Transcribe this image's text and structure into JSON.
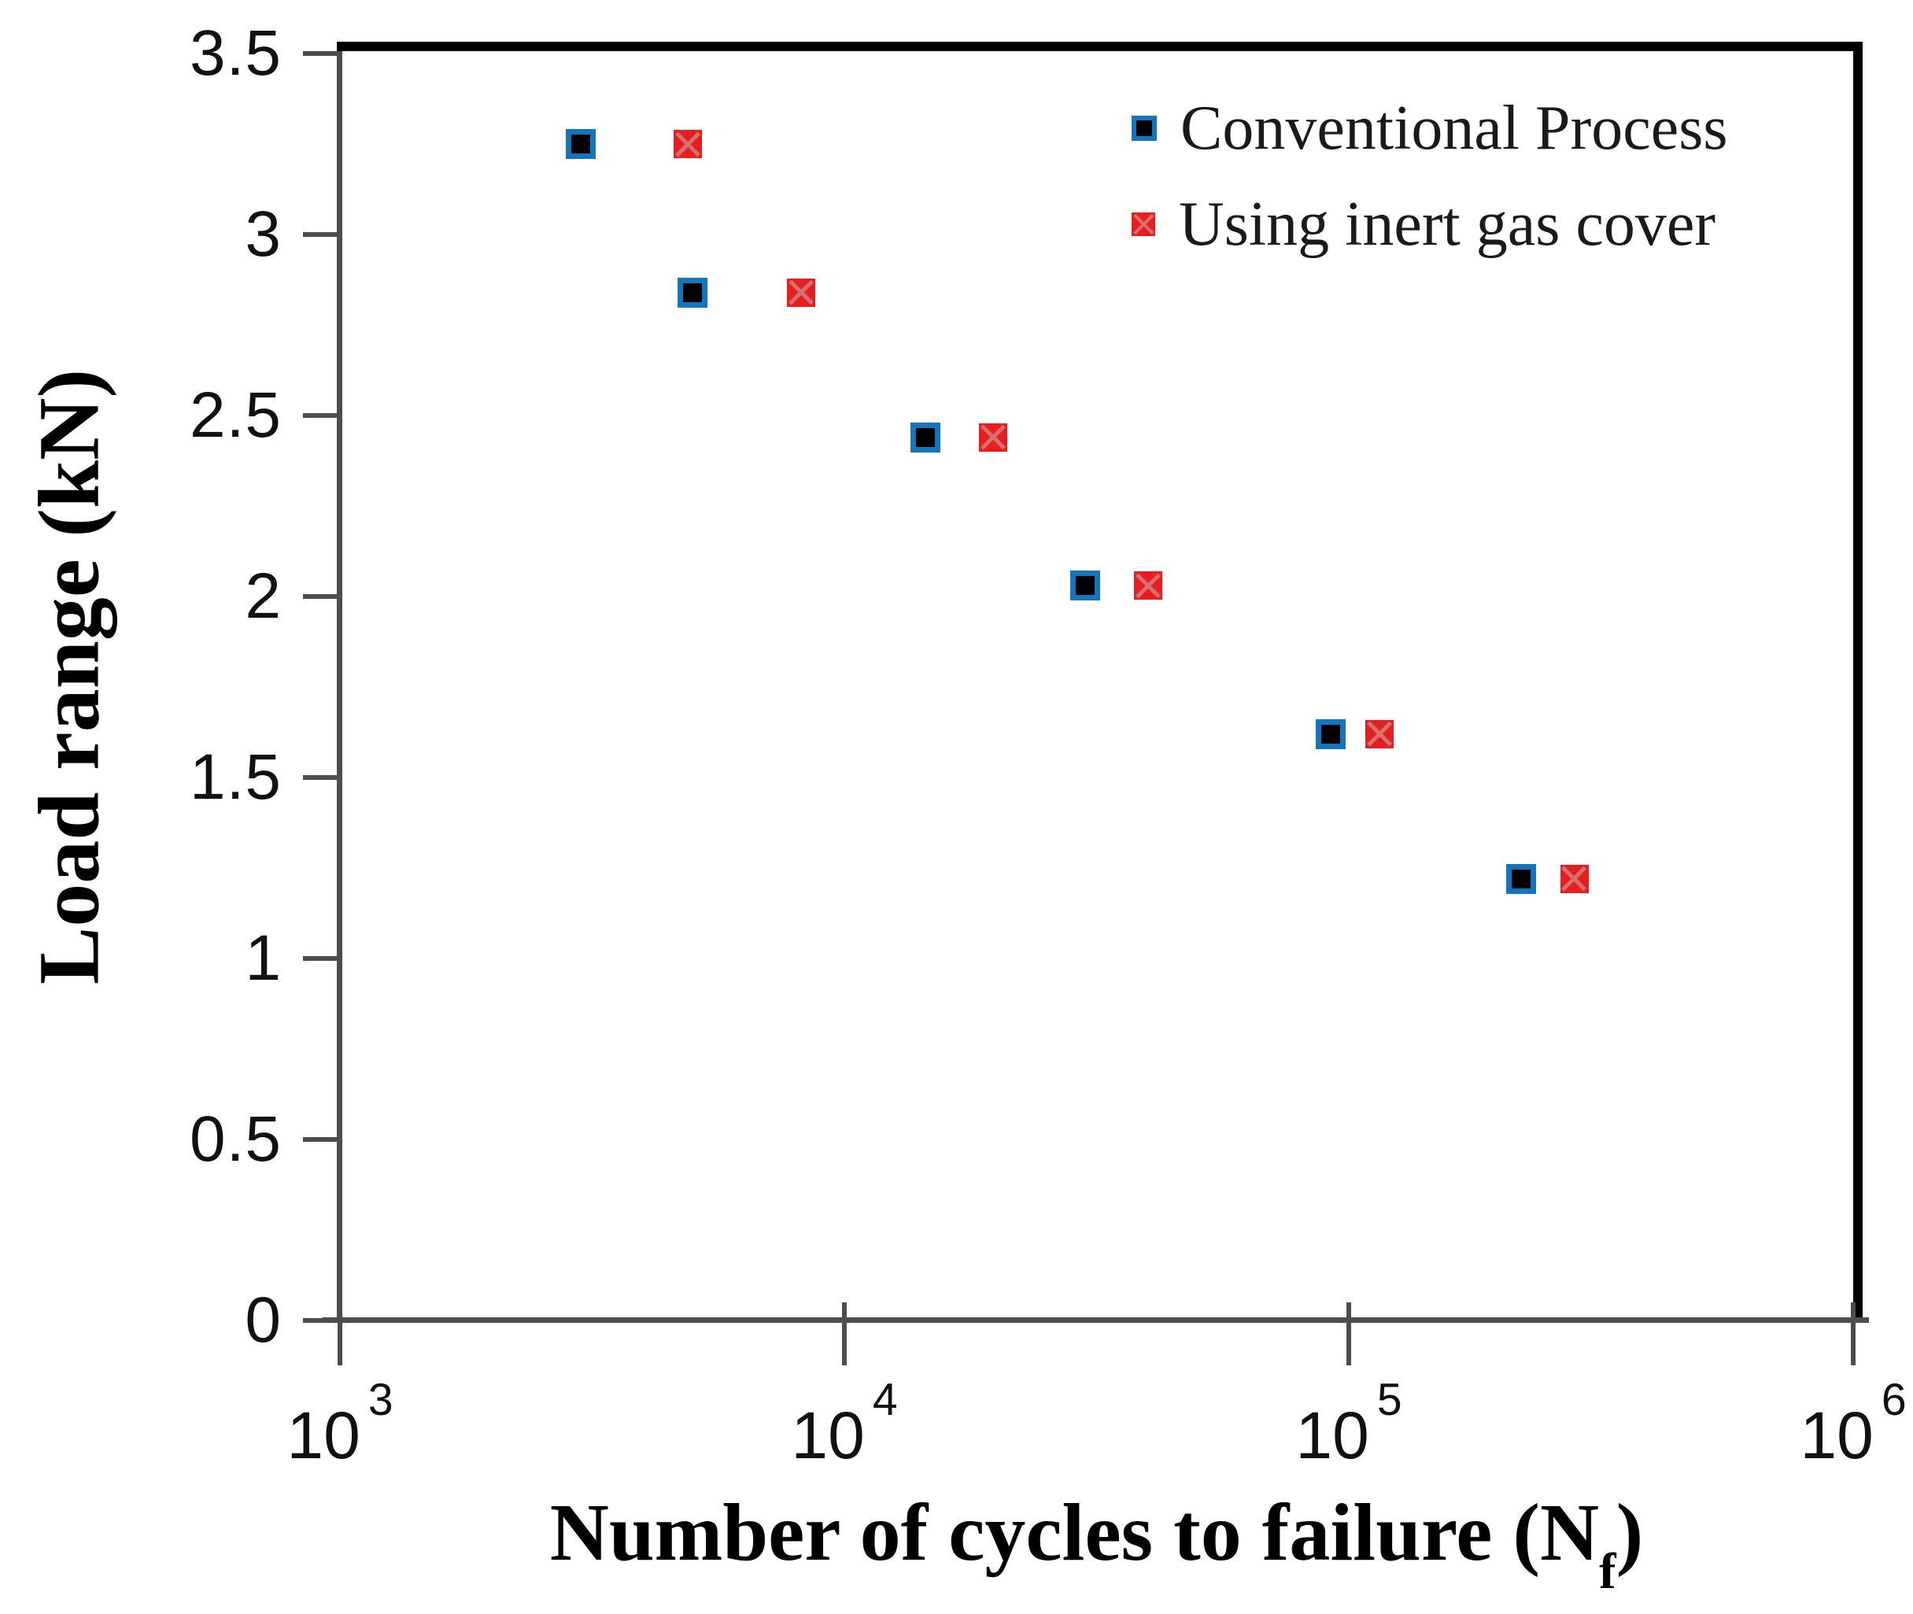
{
  "figure": {
    "background": "#ffffff"
  },
  "axis_titles": {
    "ylabel": "Load range (kN)",
    "xlabel_main": "Number of cycles to failure (N",
    "xlabel_sub": "f",
    "xlabel_close": ")"
  },
  "chart_data": {
    "type": "scatter",
    "x_scale": "log",
    "xlim": [
      1000,
      1000000
    ],
    "ylim": [
      0,
      3.5
    ],
    "grid": false,
    "legend_position": "top-right-inside",
    "xlabel": "Number of cycles to failure (Nf)",
    "ylabel": "Load range (kN)",
    "x_tick_base": "10",
    "x_ticks_exponents": [
      "3",
      "4",
      "5",
      "6"
    ],
    "y_ticks": [
      3.5,
      3,
      2.5,
      2,
      1.5,
      1,
      0.5,
      0
    ],
    "y_tick_labels": [
      "3.5",
      "3",
      "2.5",
      "2",
      "1.5",
      "1",
      "0.5",
      "0"
    ],
    "series": [
      {
        "name": "Conventional Process",
        "marker": {
          "shape": "square",
          "fill": "#000000",
          "border": "#1375bd"
        },
        "points": [
          {
            "x": 3000,
            "y": 3.25
          },
          {
            "x": 5000,
            "y": 2.84
          },
          {
            "x": 14500,
            "y": 2.44
          },
          {
            "x": 30000,
            "y": 2.03
          },
          {
            "x": 92000,
            "y": 1.62
          },
          {
            "x": 220000,
            "y": 1.22
          }
        ]
      },
      {
        "name": "Using inert gas cover",
        "marker": {
          "shape": "square-x",
          "fill": "#e81e1e",
          "cross": "#d47070"
        },
        "points": [
          {
            "x": 4900,
            "y": 3.25
          },
          {
            "x": 8200,
            "y": 2.84
          },
          {
            "x": 19700,
            "y": 2.44
          },
          {
            "x": 40000,
            "y": 2.03
          },
          {
            "x": 115000,
            "y": 1.62
          },
          {
            "x": 280000,
            "y": 1.22
          }
        ]
      }
    ]
  }
}
